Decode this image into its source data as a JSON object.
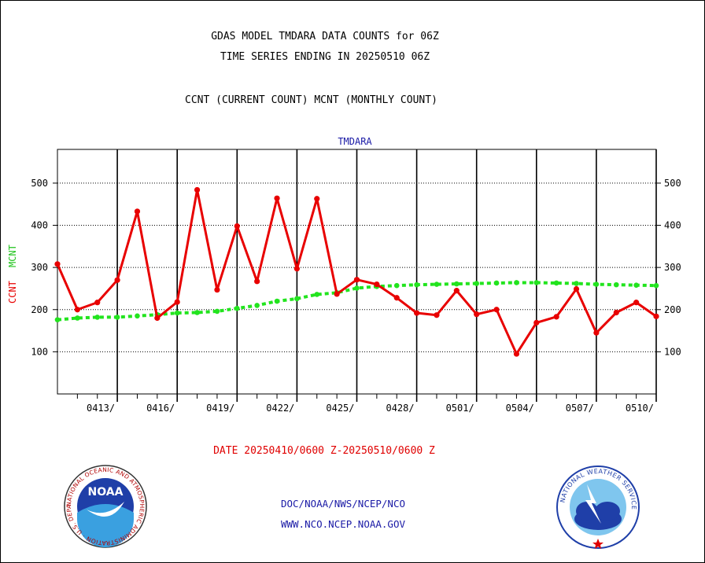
{
  "titles": {
    "line1": "GDAS MODEL TMDARA DATA COUNTS for 06Z",
    "line2": "TIME SERIES ENDING IN 20250510 06Z",
    "line3": "CCNT (CURRENT COUNT) MCNT (MONTHLY COUNT)"
  },
  "date_range": "DATE 20250410/0600 Z-20250510/0600 Z",
  "footer": {
    "line1": "DOC/NOAA/NWS/NCEP/NCO",
    "line2": "WWW.NCO.NCEP.NOAA.GOV"
  },
  "logos": {
    "left": {
      "name": "noaa-logo",
      "text": "NOAA",
      "ring_text": "NATIONAL OCEANIC AND ATMOSPHERIC ADMINISTRATION · U.S. DEPARTMENT OF COMMERCE"
    },
    "right": {
      "name": "nws-logo",
      "ring_text": "NATIONAL WEATHER SERVICE"
    }
  },
  "chart_data": {
    "type": "line",
    "title": "TMDARA",
    "ylabel_ccnt": "CCNT",
    "ylabel_mcnt": "MCNT",
    "ylim": [
      0,
      580
    ],
    "yticks": [
      100,
      200,
      300,
      400,
      500
    ],
    "xlim": [
      0,
      30
    ],
    "xticks": [
      {
        "x": 3,
        "label": "0413/"
      },
      {
        "x": 6,
        "label": "0416/"
      },
      {
        "x": 9,
        "label": "0419/"
      },
      {
        "x": 12,
        "label": "0422/"
      },
      {
        "x": 15,
        "label": "0425/"
      },
      {
        "x": 18,
        "label": "0428/"
      },
      {
        "x": 21,
        "label": "0501/"
      },
      {
        "x": 24,
        "label": "0504/"
      },
      {
        "x": 27,
        "label": "0507/"
      },
      {
        "x": 30,
        "label": "0510/"
      }
    ],
    "grid": true,
    "colors": {
      "ccnt": "#e80000",
      "mcnt": "#22e41e",
      "title": "#1a1aa6"
    },
    "series": [
      {
        "name": "CCNT",
        "values": [
          308,
          200,
          217,
          270,
          433,
          180,
          218,
          484,
          247,
          398,
          267,
          464,
          297,
          463,
          237,
          271,
          260,
          228,
          192,
          187,
          245,
          189,
          200,
          95,
          169,
          183,
          249,
          145,
          193,
          217,
          184
        ]
      },
      {
        "name": "MCNT",
        "values": [
          176,
          180,
          182,
          182,
          185,
          188,
          192,
          193,
          196,
          203,
          210,
          220,
          226,
          236,
          240,
          251,
          255,
          257,
          259,
          260,
          261,
          262,
          263,
          264,
          264,
          263,
          262,
          260,
          259,
          258,
          257
        ]
      }
    ]
  }
}
